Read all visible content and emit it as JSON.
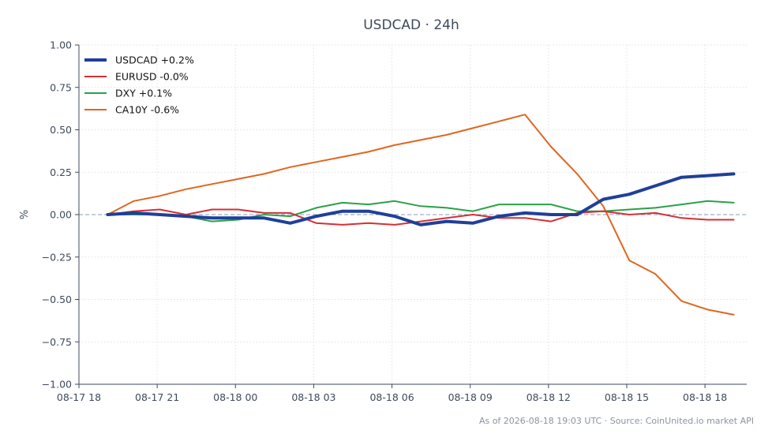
{
  "chart_data": {
    "type": "line",
    "title": "USDCAD · 24h",
    "xlabel": "",
    "ylabel": "%",
    "ylim": [
      -1.0,
      1.0
    ],
    "yticks": [
      1.0,
      0.75,
      0.5,
      0.25,
      0.0,
      -0.25,
      -0.5,
      -0.75,
      -1.0
    ],
    "ytick_labels": [
      "1.00",
      "0.75",
      "0.50",
      "0.25",
      "0.00",
      "−0.25",
      "−0.50",
      "−0.75",
      "−1.00"
    ],
    "xlim": [
      0,
      25.6
    ],
    "xticks": [
      0,
      3,
      6,
      9,
      12,
      15,
      18,
      21,
      24
    ],
    "xtick_labels": [
      "08-17 18",
      "08-17 21",
      "08-18 00",
      "08-18 03",
      "08-18 06",
      "08-18 09",
      "08-18 12",
      "08-18 15",
      "08-18 18"
    ],
    "grid": true,
    "zero_line": true,
    "legend_position": "top-left",
    "x": [
      1.1,
      2.1,
      3.1,
      4.1,
      5.1,
      6.1,
      7.1,
      8.1,
      9.1,
      10.1,
      11.1,
      12.1,
      13.1,
      14.1,
      15.1,
      16.1,
      17.1,
      18.1,
      19.1,
      20.1,
      21.1,
      22.1,
      23.1,
      24.1,
      25.1
    ],
    "series": [
      {
        "name": "USDCAD +0.2%",
        "color": "#1f3f99",
        "width": 4,
        "values": [
          0.0,
          0.01,
          0.0,
          -0.01,
          -0.02,
          -0.02,
          -0.02,
          -0.05,
          -0.01,
          0.02,
          0.02,
          -0.01,
          -0.06,
          -0.04,
          -0.05,
          -0.01,
          0.01,
          0.0,
          0.0,
          0.09,
          0.12,
          0.17,
          0.22,
          0.23,
          0.24
        ]
      },
      {
        "name": "EURUSD -0.0%",
        "color": "#d62f35",
        "width": 2,
        "values": [
          0.0,
          0.02,
          0.03,
          0.0,
          0.03,
          0.03,
          0.01,
          0.01,
          -0.05,
          -0.06,
          -0.05,
          -0.06,
          -0.04,
          -0.02,
          0.0,
          -0.02,
          -0.02,
          -0.04,
          0.01,
          0.02,
          0.0,
          0.01,
          -0.02,
          -0.03,
          -0.03
        ]
      },
      {
        "name": "DXY +0.1%",
        "color": "#2aa148",
        "width": 2,
        "values": [
          0.0,
          0.0,
          0.0,
          -0.01,
          -0.04,
          -0.03,
          0.0,
          -0.01,
          0.04,
          0.07,
          0.06,
          0.08,
          0.05,
          0.04,
          0.02,
          0.06,
          0.06,
          0.06,
          0.02,
          0.02,
          0.03,
          0.04,
          0.06,
          0.08,
          0.07
        ]
      },
      {
        "name": "CA10Y -0.6%",
        "color": "#e0661f",
        "width": 2,
        "values": [
          0.0,
          0.08,
          0.11,
          0.15,
          0.18,
          0.21,
          0.24,
          0.28,
          0.31,
          0.34,
          0.37,
          0.41,
          0.44,
          0.47,
          0.51,
          0.55,
          0.59,
          0.4,
          0.24,
          0.05,
          -0.27,
          -0.35,
          -0.51,
          -0.56,
          -0.59
        ]
      }
    ]
  },
  "footer": {
    "note": "As of 2026-08-18 19:03 UTC · Source: CoinUnited.io market API"
  },
  "colors": {
    "axis": "#3d4a5c",
    "grid": "#e6e9ee",
    "zero_line": "#8a9bb5"
  }
}
